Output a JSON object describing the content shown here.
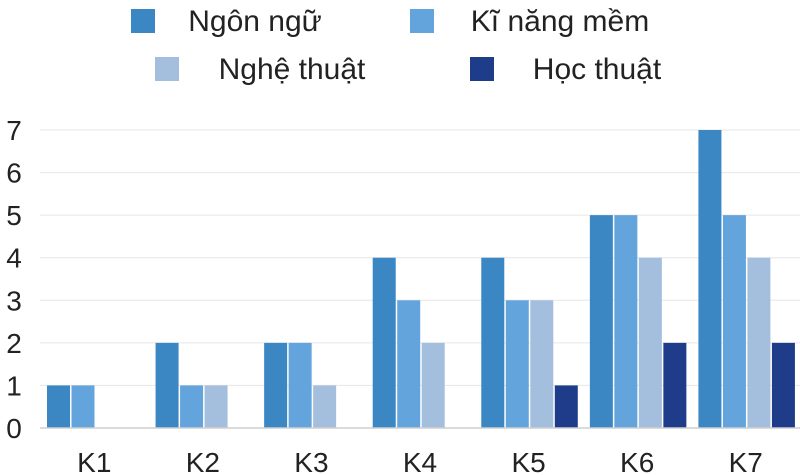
{
  "chart_data": {
    "type": "bar",
    "title": "",
    "xlabel": "",
    "ylabel": "",
    "categories": [
      "K1",
      "K2",
      "K3",
      "K4",
      "K5",
      "K6",
      "K7"
    ],
    "ylim": [
      0,
      7
    ],
    "yticks": [
      "0",
      "1",
      "2",
      "3",
      "4",
      "5",
      "6",
      "7"
    ],
    "grid": true,
    "legend_position": "top",
    "series": [
      {
        "name": "Ngôn ngữ",
        "color": "#3b87c4",
        "values": [
          1,
          2,
          2,
          4,
          4,
          5,
          7
        ]
      },
      {
        "name": "Kĩ năng mềm",
        "color": "#64a4dc",
        "values": [
          1,
          1,
          2,
          3,
          3,
          5,
          5
        ]
      },
      {
        "name": "Nghệ thuật",
        "color": "#a4bfde",
        "values": [
          0,
          1,
          1,
          2,
          3,
          4,
          4
        ]
      },
      {
        "name": "Học thuật",
        "color": "#1f3c8a",
        "values": [
          0,
          0,
          0,
          0,
          1,
          2,
          2
        ]
      }
    ]
  }
}
